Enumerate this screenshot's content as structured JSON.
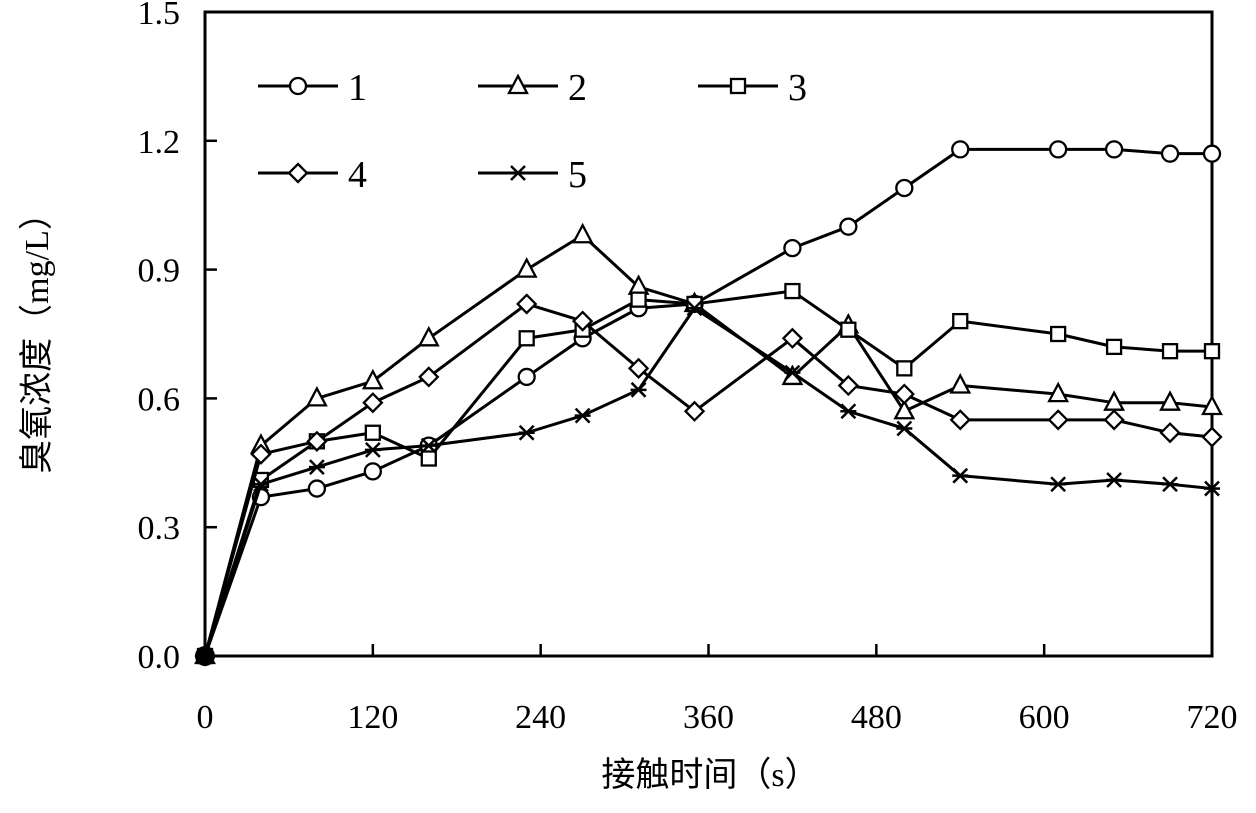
{
  "chart_data": {
    "type": "line",
    "title": "",
    "xlabel": "接触时间（s）",
    "ylabel": "臭氧浓度（mg/L）",
    "xlim": [
      0,
      720
    ],
    "ylim": [
      0,
      1.5
    ],
    "xticks": [
      0,
      120,
      240,
      360,
      480,
      600,
      720
    ],
    "yticks": [
      0.0,
      0.3,
      0.6,
      0.9,
      1.2,
      1.5
    ],
    "xtick_labels": [
      "0",
      "120",
      "240",
      "360",
      "480",
      "600",
      "720"
    ],
    "ytick_labels": [
      "0.0",
      "0.3",
      "0.6",
      "0.9",
      "1.2",
      "1.5"
    ],
    "grid": false,
    "legend_position": "top-left",
    "series": [
      {
        "name": "1",
        "marker": "circle",
        "x": [
          0,
          40,
          80,
          120,
          160,
          230,
          270,
          310,
          350,
          420,
          460,
          500,
          540,
          610,
          650,
          690,
          720
        ],
        "y": [
          0.0,
          0.37,
          0.39,
          0.43,
          0.49,
          0.65,
          0.74,
          0.81,
          0.82,
          0.95,
          1.0,
          1.09,
          1.18,
          1.18,
          1.18,
          1.17,
          1.17
        ]
      },
      {
        "name": "2",
        "marker": "triangle",
        "x": [
          0,
          40,
          80,
          120,
          160,
          230,
          270,
          310,
          350,
          420,
          460,
          500,
          540,
          610,
          650,
          690,
          720
        ],
        "y": [
          0.0,
          0.49,
          0.6,
          0.64,
          0.74,
          0.9,
          0.98,
          0.86,
          0.82,
          0.65,
          0.77,
          0.57,
          0.63,
          0.61,
          0.59,
          0.59,
          0.58
        ]
      },
      {
        "name": "3",
        "marker": "square",
        "x": [
          0,
          40,
          80,
          120,
          160,
          230,
          270,
          310,
          350,
          420,
          460,
          500,
          540,
          610,
          650,
          690,
          720
        ],
        "y": [
          0.0,
          0.41,
          0.5,
          0.52,
          0.46,
          0.74,
          0.76,
          0.83,
          0.82,
          0.85,
          0.76,
          0.67,
          0.78,
          0.75,
          0.72,
          0.71,
          0.71
        ]
      },
      {
        "name": "4",
        "marker": "diamond",
        "x": [
          0,
          40,
          80,
          120,
          160,
          230,
          270,
          310,
          350,
          420,
          460,
          500,
          540,
          610,
          650,
          690,
          720
        ],
        "y": [
          0.0,
          0.47,
          0.5,
          0.59,
          0.65,
          0.82,
          0.78,
          0.67,
          0.57,
          0.74,
          0.63,
          0.61,
          0.55,
          0.55,
          0.55,
          0.52,
          0.51
        ]
      },
      {
        "name": "5",
        "marker": "star",
        "x": [
          0,
          40,
          80,
          120,
          160,
          230,
          270,
          310,
          350,
          420,
          460,
          500,
          540,
          610,
          650,
          690,
          720
        ],
        "y": [
          0.0,
          0.4,
          0.44,
          0.48,
          0.49,
          0.52,
          0.56,
          0.62,
          0.81,
          0.66,
          0.57,
          0.53,
          0.42,
          0.4,
          0.41,
          0.4,
          0.39
        ]
      }
    ]
  }
}
